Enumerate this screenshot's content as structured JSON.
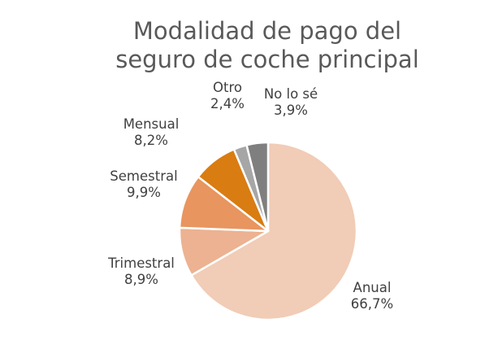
{
  "chart_data": {
    "type": "pie",
    "title_lines": [
      "Modalidad de pago del",
      "seguro de coche principal"
    ],
    "legend": "none",
    "slices": [
      {
        "label": "Anual",
        "value_text": "66,7%",
        "value": 66.7,
        "color": "#f1ccb6"
      },
      {
        "label": "Trimestral",
        "value_text": "8,9%",
        "value": 8.9,
        "color": "#ecb291"
      },
      {
        "label": "Semestral",
        "value_text": "9,9%",
        "value": 9.9,
        "color": "#e8955f"
      },
      {
        "label": "Mensual",
        "value_text": "8,2%",
        "value": 8.2,
        "color": "#d97c12"
      },
      {
        "label": "Otro",
        "value_text": "2,4%",
        "value": 2.4,
        "color": "#a6a6a6"
      },
      {
        "label": "No lo sé",
        "value_text": "3,9%",
        "value": 3.9,
        "color": "#7f7f7f"
      }
    ]
  }
}
